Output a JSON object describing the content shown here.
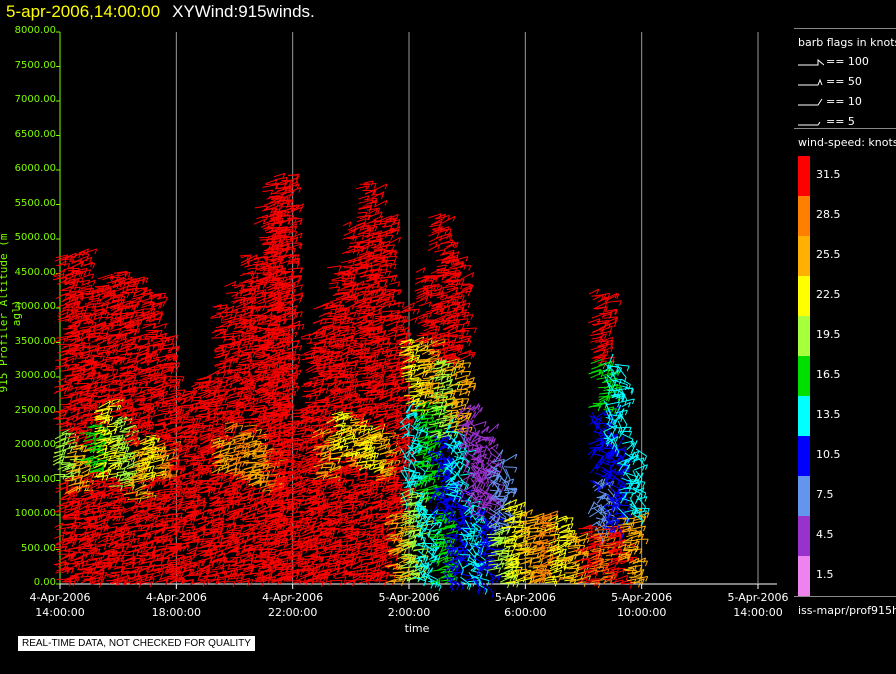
{
  "header": {
    "timestamp": "5-apr-2006,14:00:00",
    "product": "XYWind:915winds."
  },
  "chart_data": {
    "type": "wind-barb time-height plot",
    "xlabel": "time",
    "ylabel": "915 Profiler Altitude (m agl)",
    "ylim": [
      0,
      8000
    ],
    "y_ticks": [
      "8000.00",
      "7500.00",
      "7000.00",
      "6500.00",
      "6000.00",
      "5500.00",
      "5000.00",
      "4500.00",
      "4000.00",
      "3500.00",
      "3000.00",
      "2500.00",
      "2000.00",
      "1500.00",
      "1000.00",
      "500.00",
      "0.00"
    ],
    "x_ticks": [
      {
        "date": "4-Apr-2006",
        "time": "14:00:00"
      },
      {
        "date": "4-Apr-2006",
        "time": "18:00:00"
      },
      {
        "date": "4-Apr-2006",
        "time": "22:00:00"
      },
      {
        "date": "5-Apr-2006",
        "time": "2:00:00"
      },
      {
        "date": "5-Apr-2006",
        "time": "6:00:00"
      },
      {
        "date": "5-Apr-2006",
        "time": "10:00:00"
      },
      {
        "date": "5-Apr-2006",
        "time": "14:00:00"
      }
    ],
    "grid": "vertical lines at each time tick",
    "data_columns_hours_since_start": {
      "note_units": "none"
    },
    "profiles": [
      {
        "t": 0.1,
        "top": 4700,
        "segments": [
          [
            0,
            1500,
            31.5
          ],
          [
            1500,
            2200,
            19.5
          ],
          [
            2200,
            4700,
            31.5
          ]
        ]
      },
      {
        "t": 0.5,
        "top": 4800,
        "segments": [
          [
            0,
            1300,
            31.5
          ],
          [
            1300,
            2000,
            25.5
          ],
          [
            2000,
            4800,
            31.5
          ]
        ]
      },
      {
        "t": 1.0,
        "top": 4300,
        "segments": [
          [
            0,
            1600,
            31.5
          ],
          [
            1600,
            2300,
            16.5
          ],
          [
            2300,
            4300,
            31.5
          ]
        ]
      },
      {
        "t": 1.5,
        "top": 4400,
        "segments": [
          [
            0,
            1500,
            31.5
          ],
          [
            1500,
            2600,
            22.5
          ],
          [
            2600,
            4400,
            31.5
          ]
        ]
      },
      {
        "t": 2.0,
        "top": 4500,
        "segments": [
          [
            0,
            1400,
            31.5
          ],
          [
            1400,
            2400,
            19.5
          ],
          [
            2400,
            4500,
            31.5
          ]
        ]
      },
      {
        "t": 2.5,
        "top": 4400,
        "segments": [
          [
            0,
            1200,
            31.5
          ],
          [
            1200,
            2000,
            25.5
          ],
          [
            2000,
            4400,
            31.5
          ]
        ]
      },
      {
        "t": 3.0,
        "top": 4200,
        "segments": [
          [
            0,
            1500,
            31.5
          ],
          [
            1500,
            2100,
            22.5
          ],
          [
            2100,
            4200,
            31.5
          ]
        ]
      },
      {
        "t": 3.5,
        "top": 3600,
        "segments": [
          [
            0,
            1500,
            31.5
          ],
          [
            1500,
            2000,
            28.5
          ],
          [
            2000,
            3600,
            31.5
          ]
        ]
      },
      {
        "t": 4.0,
        "top": 2700,
        "segments": [
          [
            0,
            2700,
            31.5
          ]
        ]
      },
      {
        "t": 4.5,
        "top": 2900,
        "segments": [
          [
            0,
            2900,
            31.5
          ]
        ]
      },
      {
        "t": 5.0,
        "top": 3000,
        "segments": [
          [
            0,
            3000,
            31.5
          ]
        ]
      },
      {
        "t": 5.5,
        "top": 4000,
        "segments": [
          [
            0,
            1600,
            31.5
          ],
          [
            1600,
            2100,
            25.5
          ],
          [
            2100,
            4000,
            31.5
          ]
        ]
      },
      {
        "t": 6.0,
        "top": 4400,
        "segments": [
          [
            0,
            1500,
            31.5
          ],
          [
            1500,
            2300,
            28.5
          ],
          [
            2300,
            4400,
            31.5
          ]
        ]
      },
      {
        "t": 6.5,
        "top": 4700,
        "segments": [
          [
            0,
            1400,
            31.5
          ],
          [
            1400,
            2200,
            25.5
          ],
          [
            2200,
            4700,
            31.5
          ]
        ]
      },
      {
        "t": 7.0,
        "top": 5400,
        "segments": [
          [
            0,
            1300,
            31.5
          ],
          [
            1300,
            2000,
            28.5
          ],
          [
            2000,
            5400,
            31.5
          ]
        ]
      },
      {
        "t": 7.3,
        "top": 5800,
        "segments": [
          [
            0,
            5800,
            31.5
          ]
        ]
      },
      {
        "t": 7.6,
        "top": 5900,
        "segments": [
          [
            0,
            5900,
            31.5
          ]
        ]
      },
      {
        "t": 8.2,
        "top": 2500,
        "segments": [
          [
            0,
            2500,
            31.5
          ]
        ]
      },
      {
        "t": 8.6,
        "top": 3600,
        "segments": [
          [
            0,
            3600,
            31.5
          ]
        ]
      },
      {
        "t": 9.0,
        "top": 4000,
        "segments": [
          [
            0,
            1500,
            31.5
          ],
          [
            1500,
            2200,
            25.5
          ],
          [
            2200,
            4000,
            31.5
          ]
        ]
      },
      {
        "t": 9.5,
        "top": 4600,
        "segments": [
          [
            0,
            1800,
            31.5
          ],
          [
            1800,
            2500,
            22.5
          ],
          [
            2500,
            4600,
            31.5
          ]
        ]
      },
      {
        "t": 10.0,
        "top": 5200,
        "segments": [
          [
            0,
            1700,
            31.5
          ],
          [
            1700,
            2400,
            25.5
          ],
          [
            2400,
            5200,
            31.5
          ]
        ]
      },
      {
        "t": 10.5,
        "top": 5800,
        "segments": [
          [
            0,
            1600,
            31.5
          ],
          [
            1600,
            2300,
            22.5
          ],
          [
            2300,
            5800,
            31.5
          ]
        ]
      },
      {
        "t": 11.0,
        "top": 5300,
        "segments": [
          [
            0,
            1500,
            31.5
          ],
          [
            1500,
            2200,
            25.5
          ],
          [
            2200,
            5300,
            31.5
          ]
        ]
      },
      {
        "t": 11.5,
        "top": 4000,
        "segments": [
          [
            0,
            1000,
            25.5
          ],
          [
            1000,
            4000,
            31.5
          ]
        ]
      },
      {
        "t": 12.0,
        "top": 3500,
        "segments": [
          [
            0,
            1300,
            19.5
          ],
          [
            1300,
            2500,
            13.5
          ],
          [
            2500,
            3500,
            22.5
          ]
        ]
      },
      {
        "t": 12.5,
        "top": 4500,
        "segments": [
          [
            0,
            1200,
            13.5
          ],
          [
            1200,
            2600,
            16.5
          ],
          [
            2600,
            3500,
            25.5
          ],
          [
            3500,
            4500,
            31.5
          ]
        ]
      },
      {
        "t": 13.0,
        "top": 5300,
        "segments": [
          [
            0,
            1000,
            16.5
          ],
          [
            1000,
            2100,
            10.5
          ],
          [
            2100,
            3200,
            19.5
          ],
          [
            3200,
            5300,
            31.5
          ]
        ]
      },
      {
        "t": 13.5,
        "top": 4700,
        "segments": [
          [
            0,
            1300,
            10.5
          ],
          [
            1300,
            2200,
            13.5
          ],
          [
            2200,
            3200,
            25.5
          ],
          [
            3200,
            4700,
            31.5
          ]
        ]
      },
      {
        "t": 14.0,
        "top": 2500,
        "segments": [
          [
            0,
            1200,
            13.5
          ],
          [
            1200,
            2500,
            4.5
          ]
        ]
      },
      {
        "t": 14.5,
        "top": 2200,
        "segments": [
          [
            0,
            1000,
            10.5
          ],
          [
            1000,
            2200,
            4.5
          ]
        ]
      },
      {
        "t": 15.0,
        "top": 1800,
        "segments": [
          [
            0,
            800,
            19.5
          ],
          [
            800,
            1800,
            7.5
          ]
        ]
      },
      {
        "t": 15.5,
        "top": 1100,
        "segments": [
          [
            0,
            1100,
            22.5
          ]
        ]
      },
      {
        "t": 16.0,
        "top": 1000,
        "segments": [
          [
            0,
            1000,
            25.5
          ]
        ]
      },
      {
        "t": 16.5,
        "top": 1000,
        "segments": [
          [
            0,
            1000,
            28.5
          ]
        ]
      },
      {
        "t": 17.0,
        "top": 900,
        "segments": [
          [
            0,
            900,
            22.5
          ]
        ]
      },
      {
        "t": 17.5,
        "top": 700,
        "segments": [
          [
            0,
            700,
            25.5
          ]
        ]
      },
      {
        "t": 18.0,
        "top": 800,
        "segments": [
          [
            0,
            800,
            31.5
          ]
        ]
      },
      {
        "t": 18.5,
        "top": 4200,
        "segments": [
          [
            0,
            800,
            28.5
          ],
          [
            800,
            1500,
            7.5
          ],
          [
            1500,
            2500,
            10.5
          ],
          [
            2500,
            3200,
            16.5
          ],
          [
            3200,
            4200,
            31.5
          ]
        ]
      },
      {
        "t": 19.0,
        "top": 3200,
        "segments": [
          [
            0,
            800,
            31.5
          ],
          [
            800,
            2000,
            10.5
          ],
          [
            2000,
            3200,
            13.5
          ]
        ]
      },
      {
        "t": 19.5,
        "top": 1900,
        "segments": [
          [
            0,
            1000,
            25.5
          ],
          [
            1000,
            1900,
            13.5
          ]
        ]
      }
    ]
  },
  "legend": {
    "barb_title": "barb flags in knots",
    "barb_flags": [
      "== 100",
      "== 50",
      "== 10",
      "== 5"
    ],
    "speed_title": "wind-speed: knots",
    "speed_scale": [
      {
        "label": "31.5",
        "color": "#ff0000"
      },
      {
        "label": "28.5",
        "color": "#ff8000"
      },
      {
        "label": "25.5",
        "color": "#ffb000"
      },
      {
        "label": "22.5",
        "color": "#ffff00"
      },
      {
        "label": "19.5",
        "color": "#a8ff3c"
      },
      {
        "label": "16.5",
        "color": "#00e000"
      },
      {
        "label": "13.5",
        "color": "#00ffff"
      },
      {
        "label": "10.5",
        "color": "#0000ff"
      },
      {
        "label": "7.5",
        "color": "#6495ed"
      },
      {
        "label": "4.5",
        "color": "#9932cc"
      },
      {
        "label": "1.5",
        "color": "#ee82ee"
      }
    ],
    "source": "iss-mapr/prof915h"
  },
  "footer": {
    "qc_notice": "REAL-TIME DATA, NOT CHECKED FOR QUALITY"
  }
}
